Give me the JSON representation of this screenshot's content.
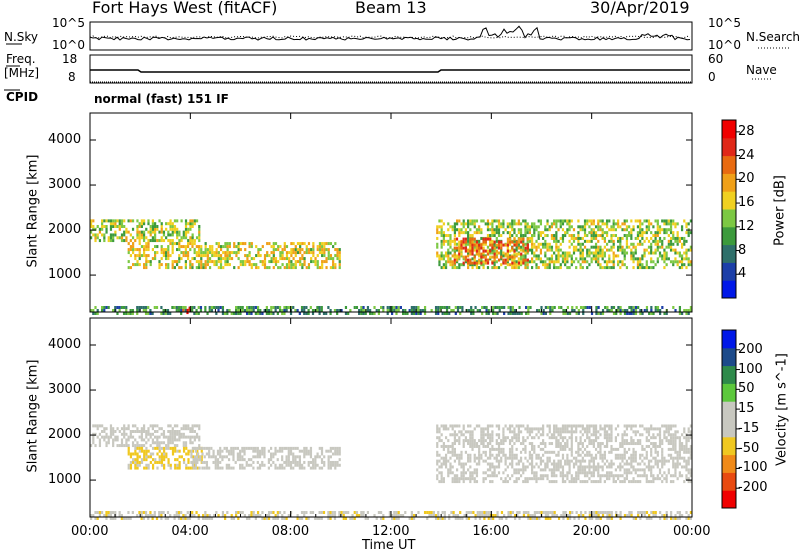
{
  "header": {
    "station": "Fort Hays West (fitACF)",
    "beam": "Beam 13",
    "date": "30/Apr/2019"
  },
  "noise_panel": {
    "left_label": "N.Sky",
    "left_ticks": [
      "10^5",
      "10^0"
    ],
    "right_label": "N.Search",
    "right_ticks": [
      "10^5",
      "10^0"
    ]
  },
  "freq_panel": {
    "left_label_1": "Freq.",
    "left_label_2": "[MHz]",
    "left_ticks": [
      "18",
      "8"
    ],
    "right_label": "Nave",
    "right_ticks": [
      "60",
      "0"
    ]
  },
  "cpid_panel": {
    "label": "CPID",
    "mode_text": "normal (fast) 151 IF"
  },
  "colors": {
    "power_scale": [
      "#0018e8",
      "#1c3fa8",
      "#2e6f6a",
      "#3c9a3c",
      "#7cc843",
      "#f0d020",
      "#f0a018",
      "#e86a10",
      "#e02818",
      "#f00000"
    ],
    "velocity_scale": [
      "#0018e8",
      "#1c4a8a",
      "#2e8a4a",
      "#5cc83c",
      "#c8c8c0",
      "#c8c8c0",
      "#f0c820",
      "#f08a18",
      "#e84a10",
      "#f00000"
    ]
  },
  "chart_data": [
    {
      "type": "heatmap",
      "name_shown": "",
      "xlabel": "Time UT",
      "ylabel": "Slant Range [km]",
      "x_ticks": [
        "00:00",
        "04:00",
        "08:00",
        "12:00",
        "16:00",
        "20:00",
        "00:00"
      ],
      "x_range_hours": [
        0,
        24
      ],
      "y_ticks": [
        1000,
        2000,
        3000,
        4000
      ],
      "ylim": [
        180,
        4600
      ],
      "colorbar_label": "Power [dB]",
      "colorbar_ticks": [
        4,
        8,
        12,
        16,
        20,
        24,
        28
      ],
      "colorbar_range": [
        0,
        30
      ],
      "regions": [
        {
          "t0": 0.0,
          "t1": 4.4,
          "r0": 1800,
          "r1": 2300,
          "value": 14
        },
        {
          "t0": 1.5,
          "t1": 10.0,
          "r0": 1200,
          "r1": 1800,
          "value": 16
        },
        {
          "t0": 3.5,
          "t1": 4.1,
          "r0": 200,
          "r1": 350,
          "value": 28
        },
        {
          "t0": 0.0,
          "t1": 24.0,
          "r0": 180,
          "r1": 380,
          "value": 10
        },
        {
          "t0": 13.8,
          "t1": 24.0,
          "r0": 1200,
          "r1": 2300,
          "value": 14
        },
        {
          "t0": 14.5,
          "t1": 17.5,
          "r0": 1300,
          "r1": 1900,
          "value": 22
        }
      ]
    },
    {
      "type": "heatmap",
      "xlabel": "Time UT",
      "ylabel": "Slant Range [km]",
      "x_ticks": [
        "00:00",
        "04:00",
        "08:00",
        "12:00",
        "16:00",
        "20:00",
        "00:00"
      ],
      "x_range_hours": [
        0,
        24
      ],
      "y_ticks": [
        1000,
        2000,
        3000,
        4000
      ],
      "ylim": [
        180,
        4600
      ],
      "colorbar_label": "Velocity [m s^-1]",
      "colorbar_ticks": [
        200,
        100,
        50,
        15,
        -15,
        -50,
        -100,
        -200
      ],
      "colorbar_range": [
        -250,
        250
      ],
      "regions": [
        {
          "t0": 0.0,
          "t1": 4.4,
          "r0": 1800,
          "r1": 2300,
          "value": 0
        },
        {
          "t0": 1.5,
          "t1": 4.5,
          "r0": 1300,
          "r1": 1800,
          "value": -60
        },
        {
          "t0": 4.0,
          "t1": 10.0,
          "r0": 1300,
          "r1": 1800,
          "value": 0
        },
        {
          "t0": 0.0,
          "t1": 24.0,
          "r0": 180,
          "r1": 380,
          "value": -40
        },
        {
          "t0": 13.8,
          "t1": 24.0,
          "r0": 1000,
          "r1": 2300,
          "value": 0
        }
      ]
    }
  ]
}
